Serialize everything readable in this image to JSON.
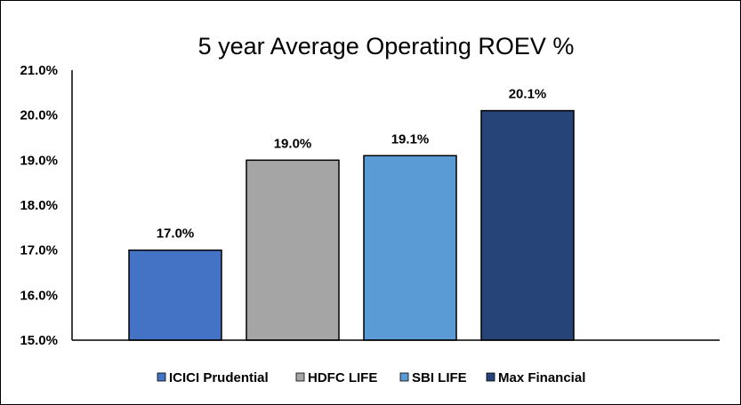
{
  "chart_data": {
    "type": "bar",
    "title": "5 year Average Operating ROEV %",
    "categories": [
      "ICICI Prudential",
      "HDFC LIFE",
      "SBI LIFE",
      "Max Financial"
    ],
    "values": [
      17.0,
      19.0,
      19.1,
      20.1
    ],
    "data_labels": [
      "17.0%",
      "19.0%",
      "19.1%",
      "20.1%"
    ],
    "colors": [
      "#4472c4",
      "#a5a5a5",
      "#5b9bd5",
      "#264478"
    ],
    "ylim": [
      15.0,
      21.0
    ],
    "yticks": [
      15.0,
      16.0,
      17.0,
      18.0,
      19.0,
      20.0,
      21.0
    ],
    "ytick_labels": [
      "15.0%",
      "16.0%",
      "17.0%",
      "18.0%",
      "19.0%",
      "20.0%",
      "21.0%"
    ],
    "grid": false,
    "legend_position": "bottom",
    "xlabel": "",
    "ylabel": ""
  }
}
